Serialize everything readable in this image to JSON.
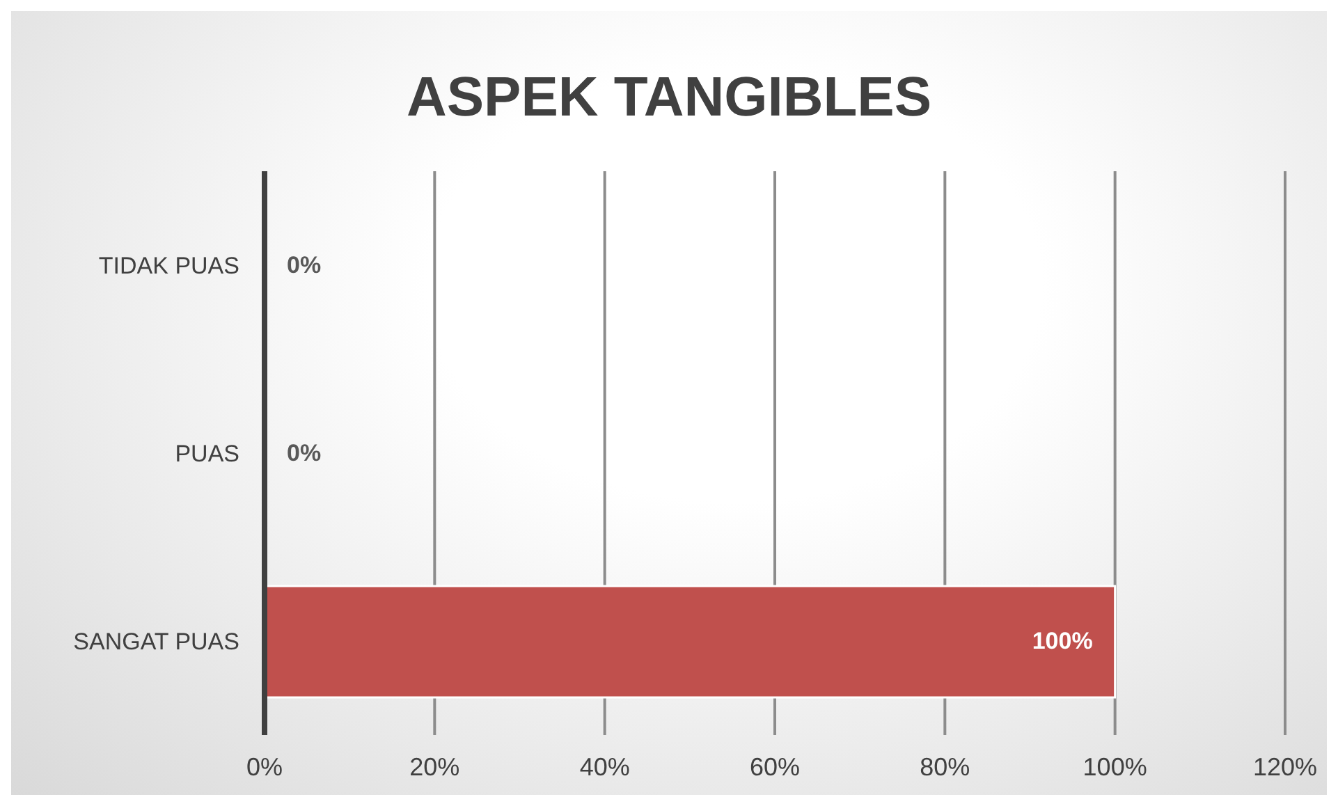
{
  "chart_data": {
    "type": "bar",
    "orientation": "horizontal",
    "title": "ASPEK TANGIBLES",
    "categories": [
      "TIDAK PUAS",
      "PUAS",
      "SANGAT PUAS"
    ],
    "values": [
      0,
      0,
      100
    ],
    "color": "#c0504d",
    "value_labels": [
      "0%",
      "0%",
      "100%"
    ],
    "xlim": [
      0,
      120
    ],
    "xticks": [
      {
        "value": 0,
        "label": "0%"
      },
      {
        "value": 20,
        "label": "20%"
      },
      {
        "value": 40,
        "label": "40%"
      },
      {
        "value": 60,
        "label": "60%"
      },
      {
        "value": 80,
        "label": "80%"
      },
      {
        "value": 100,
        "label": "100%"
      },
      {
        "value": 120,
        "label": "120%"
      }
    ],
    "grid": "x"
  }
}
